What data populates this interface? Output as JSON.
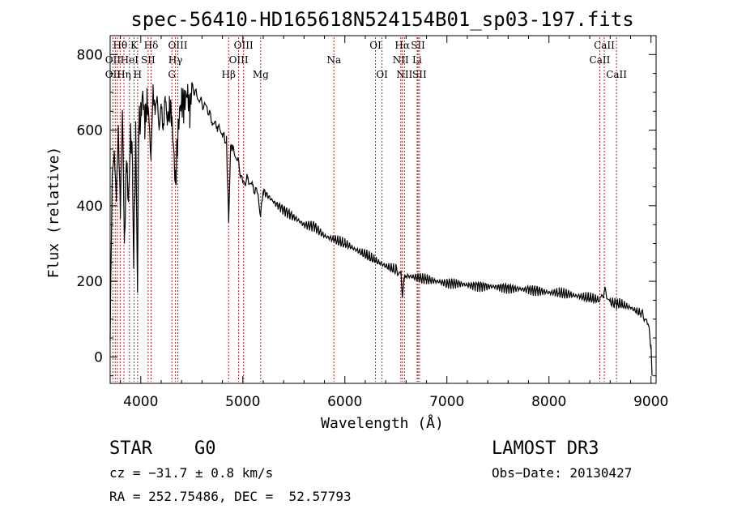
{
  "chart_data": {
    "type": "line",
    "title": "spec-56410-HD165618N524154B01_sp03-197.fits",
    "xlabel": "Wavelength (Å)",
    "ylabel": "Flux (relative)",
    "xlim": [
      3700,
      9050
    ],
    "ylim": [
      -70,
      850
    ],
    "x_ticks": [
      4000,
      5000,
      6000,
      7000,
      8000,
      9000
    ],
    "y_ticks": [
      0,
      200,
      400,
      600,
      800
    ],
    "series": [
      {
        "name": "flux",
        "x": [
          3700,
          3720,
          3740,
          3760,
          3780,
          3800,
          3820,
          3840,
          3860,
          3880,
          3900,
          3920,
          3930,
          3950,
          3968,
          3980,
          4000,
          4020,
          4040,
          4060,
          4080,
          4101,
          4120,
          4140,
          4160,
          4180,
          4200,
          4220,
          4240,
          4260,
          4280,
          4300,
          4320,
          4340,
          4360,
          4380,
          4400,
          4420,
          4440,
          4460,
          4480,
          4500,
          4550,
          4600,
          4650,
          4700,
          4750,
          4800,
          4840,
          4861,
          4880,
          4900,
          4950,
          5000,
          5050,
          5100,
          5150,
          5175,
          5200,
          5300,
          5400,
          5500,
          5600,
          5700,
          5800,
          5900,
          6000,
          6100,
          6200,
          6300,
          6400,
          6500,
          6550,
          6563,
          6580,
          6600,
          6700,
          6800,
          6900,
          7000,
          7100,
          7200,
          7300,
          7400,
          7500,
          7600,
          7700,
          7800,
          7900,
          8000,
          8100,
          8200,
          8300,
          8400,
          8500,
          8542,
          8600,
          8662,
          8700,
          8800,
          8900,
          8950,
          8980,
          9000,
          9010
        ],
        "y": [
          60,
          480,
          540,
          420,
          600,
          380,
          650,
          300,
          520,
          410,
          600,
          500,
          250,
          580,
          170,
          610,
          640,
          700,
          610,
          680,
          630,
          520,
          700,
          650,
          690,
          600,
          670,
          600,
          690,
          620,
          660,
          640,
          560,
          460,
          570,
          650,
          680,
          660,
          690,
          700,
          640,
          720,
          690,
          670,
          660,
          620,
          610,
          590,
          570,
          360,
          560,
          550,
          520,
          460,
          470,
          450,
          430,
          370,
          440,
          410,
          390,
          370,
          350,
          345,
          320,
          310,
          300,
          285,
          270,
          255,
          240,
          230,
          220,
          160,
          210,
          215,
          210,
          205,
          200,
          195,
          195,
          190,
          188,
          187,
          185,
          183,
          180,
          178,
          175,
          170,
          170,
          165,
          160,
          155,
          150,
          175,
          145,
          140,
          140,
          130,
          115,
          100,
          80,
          20,
          -50
        ]
      }
    ],
    "line_labels": [
      {
        "label": "Hθ",
        "wavelength": 3798,
        "row": 0
      },
      {
        "label": "OII",
        "wavelength": 3727,
        "row": 1
      },
      {
        "label": "OII",
        "wavelength": 3727,
        "row": 2
      },
      {
        "label": "Hη",
        "wavelength": 3835,
        "row": 2
      },
      {
        "label": "HeI",
        "wavelength": 3889,
        "row": 1
      },
      {
        "label": "K",
        "wavelength": 3934,
        "row": 0
      },
      {
        "label": "SII",
        "wavelength": 4072,
        "row": 1
      },
      {
        "label": "Hδ",
        "wavelength": 4101,
        "row": 0
      },
      {
        "label": "H",
        "wavelength": 3969,
        "row": 2
      },
      {
        "label": "OIII",
        "wavelength": 4363,
        "row": 0
      },
      {
        "label": "Hγ",
        "wavelength": 4340,
        "row": 1
      },
      {
        "label": "G",
        "wavelength": 4305,
        "row": 2
      },
      {
        "label": "Hβ",
        "wavelength": 4861,
        "row": 2
      },
      {
        "label": "OIII",
        "wavelength": 5007,
        "row": 0
      },
      {
        "label": "OIII",
        "wavelength": 4959,
        "row": 1
      },
      {
        "label": "Mg",
        "wavelength": 5175,
        "row": 2
      },
      {
        "label": "Na",
        "wavelength": 5893,
        "row": 1
      },
      {
        "label": "OI",
        "wavelength": 6300,
        "row": 0
      },
      {
        "label": "OI",
        "wavelength": 6364,
        "row": 2
      },
      {
        "label": "Hα",
        "wavelength": 6563,
        "row": 0
      },
      {
        "label": "SII",
        "wavelength": 6717,
        "row": 0
      },
      {
        "label": "NII",
        "wavelength": 6548,
        "row": 1
      },
      {
        "label": "Li",
        "wavelength": 6708,
        "row": 1
      },
      {
        "label": "NII",
        "wavelength": 6584,
        "row": 2
      },
      {
        "label": "SII",
        "wavelength": 6731,
        "row": 2
      },
      {
        "label": "CaII",
        "wavelength": 8542,
        "row": 0
      },
      {
        "label": "CaII",
        "wavelength": 8498,
        "row": 1
      },
      {
        "label": "CaII",
        "wavelength": 8662,
        "row": 2
      }
    ],
    "marker_lines": [
      3727,
      3750,
      3771,
      3798,
      3835,
      3889,
      3934,
      3969,
      4072,
      4101,
      4305,
      4340,
      4363,
      4861,
      4959,
      5007,
      5175,
      5893,
      6300,
      6364,
      6548,
      6563,
      6584,
      6708,
      6717,
      6731,
      8498,
      8542,
      8662
    ],
    "line_color": "#000000",
    "marker_color": "#b22222"
  },
  "info": {
    "object_class": "STAR",
    "subclass": "G0",
    "survey": "LAMOST DR3",
    "cz": "cz = −31.7 ± 0.8 km/s",
    "obs_date": "Obs−Date: 20130427",
    "coords": "RA = 252.75486, DEC =  52.57793"
  }
}
